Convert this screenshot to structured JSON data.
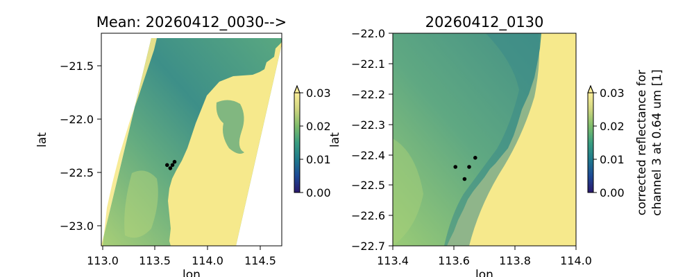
{
  "chart_data": [
    {
      "type": "heatmap",
      "title": "Mean: 20260412_0030-->",
      "xlabel": "lon",
      "ylabel": "lat",
      "xlim": [
        112.98,
        114.68
      ],
      "ylim": [
        -23.2,
        -21.2
      ],
      "xticks": [
        "113.0",
        "113.5",
        "114.0",
        "114.5"
      ],
      "yticks": [
        "−21.5",
        "−22.0",
        "−22.5",
        "−23.0"
      ],
      "xtick_values": [
        113.0,
        113.5,
        114.0,
        114.5
      ],
      "ytick_values": [
        -21.5,
        -22.0,
        -22.5,
        -23.0
      ],
      "points": [
        {
          "lon": 113.6,
          "lat": -22.44
        },
        {
          "lon": 113.63,
          "lat": -22.47
        },
        {
          "lon": 113.65,
          "lat": -22.44
        },
        {
          "lon": 113.67,
          "lat": -22.41
        }
      ],
      "colorbar": {
        "ticks": [
          "0.00",
          "0.01",
          "0.02",
          "0.03"
        ],
        "tick_values": [
          0,
          0.01,
          0.02,
          0.03
        ],
        "min": 0,
        "max": 0.03,
        "extend": "max",
        "colormap": "haline-like",
        "label": ""
      }
    },
    {
      "type": "heatmap",
      "title": "20260412_0130",
      "xlabel": "lon",
      "ylabel": "lat",
      "xlim": [
        113.4,
        114.0
      ],
      "ylim": [
        -22.7,
        -22.0
      ],
      "xticks": [
        "113.4",
        "113.6",
        "113.8",
        "114.0"
      ],
      "yticks": [
        "−22.0",
        "−22.1",
        "−22.2",
        "−22.3",
        "−22.4",
        "−22.5",
        "−22.6",
        "−22.7"
      ],
      "xtick_values": [
        113.4,
        113.6,
        113.8,
        114.0
      ],
      "ytick_values": [
        -22.0,
        -22.1,
        -22.2,
        -22.3,
        -22.4,
        -22.5,
        -22.6,
        -22.7
      ],
      "points": [
        {
          "lon": 113.605,
          "lat": -22.44
        },
        {
          "lon": 113.65,
          "lat": -22.44
        },
        {
          "lon": 113.67,
          "lat": -22.41
        },
        {
          "lon": 113.635,
          "lat": -22.48
        }
      ],
      "colorbar": {
        "ticks": [
          "0.00",
          "0.01",
          "0.02",
          "0.03"
        ],
        "tick_values": [
          0,
          0.01,
          0.02,
          0.03
        ],
        "min": 0,
        "max": 0.03,
        "extend": "max",
        "colormap": "haline-like",
        "label_lines": [
          "corrected reflectance for",
          "channel 3 at 0.64 um [1]"
        ]
      }
    }
  ],
  "colors": {
    "land": "#f6e98c",
    "sea_dark": "#3f8f86",
    "sea_mid": "#55a582",
    "sea_light": "#8fc478",
    "cmap_stops": [
      "#2a186c",
      "#1d4a96",
      "#1f7a8c",
      "#3a9e80",
      "#7fbd6b",
      "#cfd680",
      "#fdef9a"
    ]
  }
}
